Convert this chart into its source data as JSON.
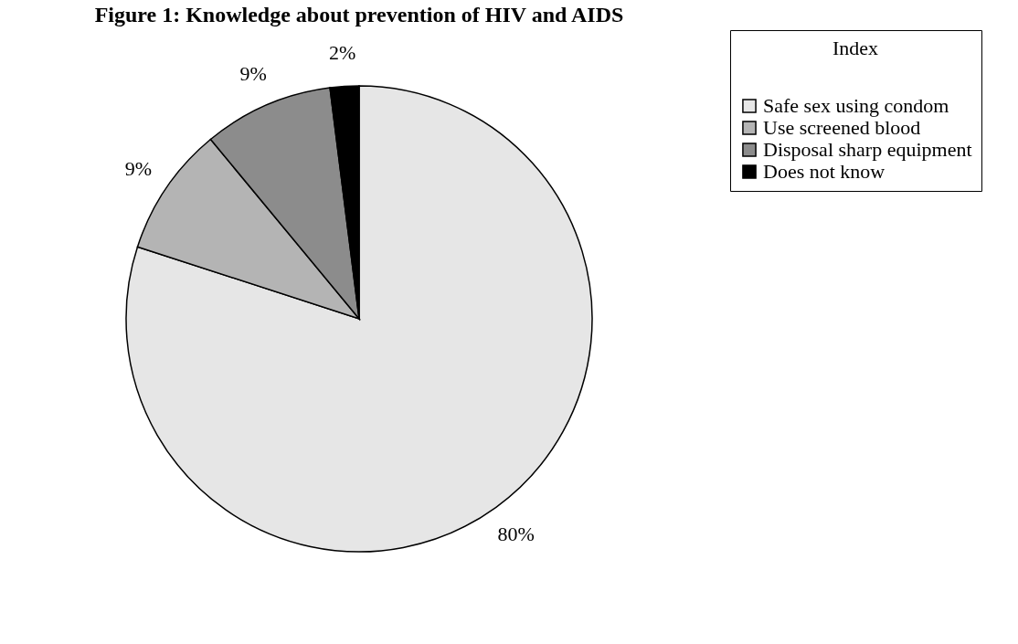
{
  "chart_data": {
    "type": "pie",
    "title": "Figure  1: Knowledge about prevention of HIV and AIDS",
    "legend_title": "Index",
    "categories": [
      "Safe sex using condom",
      "Use screened blood",
      "Disposal sharp equipment",
      "Does not know"
    ],
    "values": [
      80,
      9,
      9,
      2
    ],
    "colors": [
      "#e6e6e6",
      "#b4b4b4",
      "#8c8c8c",
      "#000000"
    ],
    "value_labels": [
      "80%",
      "9%",
      "9%",
      "2%"
    ],
    "legend": "right"
  }
}
